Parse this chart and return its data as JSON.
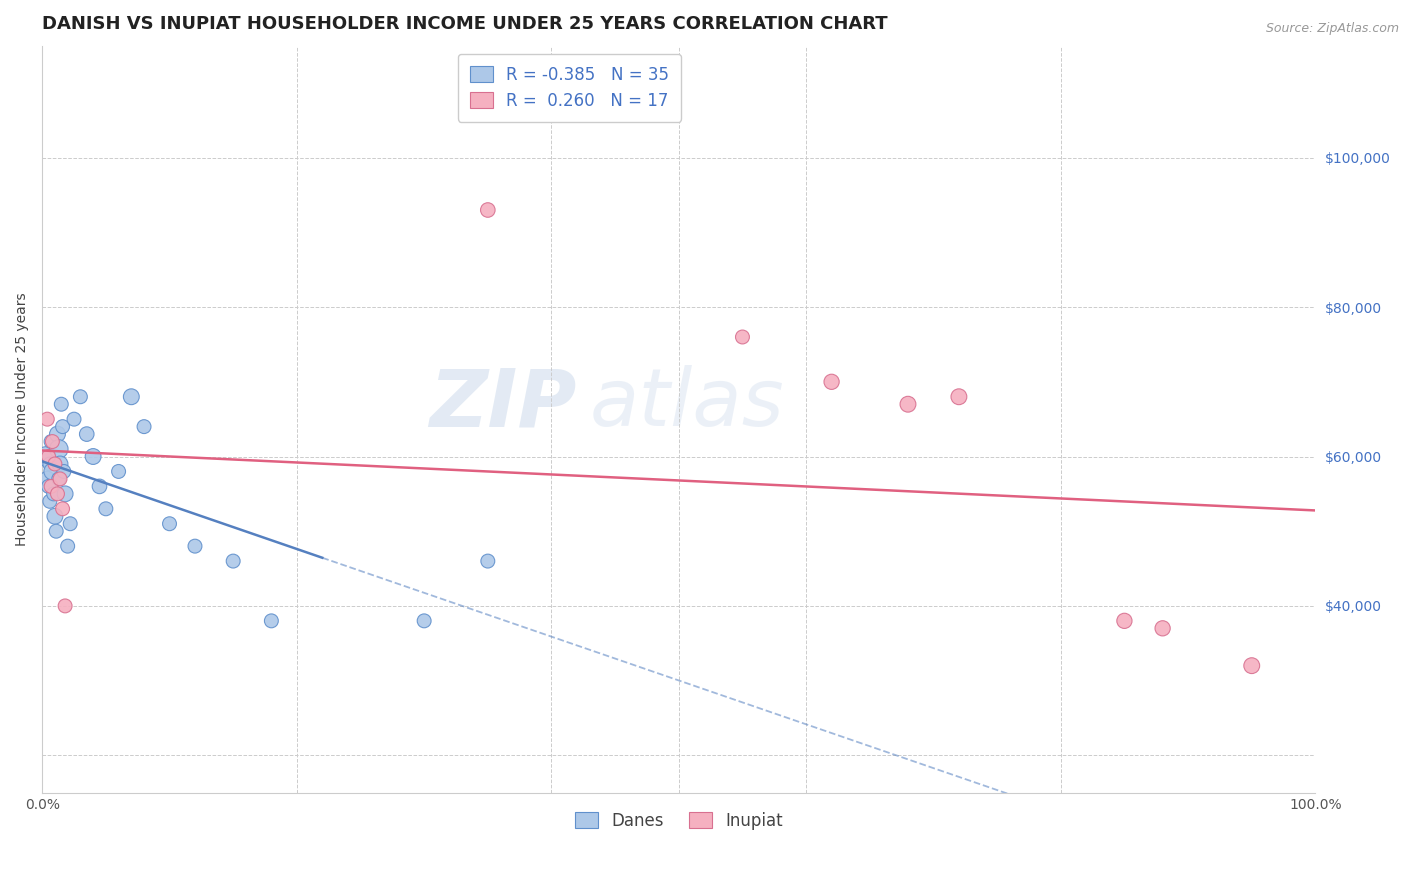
{
  "title": "DANISH VS INUPIAT HOUSEHOLDER INCOME UNDER 25 YEARS CORRELATION CHART",
  "source": "Source: ZipAtlas.com",
  "ylabel": "Householder Income Under 25 years",
  "xlim": [
    0.0,
    1.0
  ],
  "ylim": [
    15000,
    115000
  ],
  "r_danes": -0.385,
  "n_danes": 35,
  "r_inupiat": 0.26,
  "n_inupiat": 17,
  "danes_color": "#adc8e8",
  "danes_line_color": "#5580c0",
  "danes_edge_color": "#6090cc",
  "inupiat_color": "#f5b0c0",
  "inupiat_line_color": "#e06080",
  "inupiat_edge_color": "#d87090",
  "background_color": "#ffffff",
  "watermark_zip": "ZIP",
  "watermark_atlas": "atlas",
  "danes_x": [
    0.003,
    0.004,
    0.005,
    0.006,
    0.006,
    0.007,
    0.008,
    0.009,
    0.01,
    0.011,
    0.012,
    0.013,
    0.013,
    0.014,
    0.015,
    0.016,
    0.017,
    0.018,
    0.02,
    0.022,
    0.025,
    0.03,
    0.035,
    0.04,
    0.045,
    0.05,
    0.06,
    0.07,
    0.08,
    0.1,
    0.12,
    0.15,
    0.18,
    0.3,
    0.35
  ],
  "danes_y": [
    60000,
    57000,
    56000,
    59000,
    54000,
    62000,
    58000,
    55000,
    52000,
    50000,
    63000,
    61000,
    57000,
    59000,
    67000,
    64000,
    58000,
    55000,
    48000,
    51000,
    65000,
    68000,
    63000,
    60000,
    56000,
    53000,
    58000,
    68000,
    64000,
    51000,
    48000,
    46000,
    38000,
    38000,
    46000
  ],
  "danes_sizes": [
    200,
    120,
    100,
    100,
    100,
    100,
    150,
    100,
    130,
    100,
    130,
    180,
    100,
    130,
    100,
    100,
    100,
    130,
    100,
    100,
    100,
    100,
    110,
    130,
    110,
    100,
    100,
    130,
    100,
    100,
    100,
    100,
    100,
    100,
    100
  ],
  "inupiat_x": [
    0.004,
    0.005,
    0.007,
    0.008,
    0.01,
    0.012,
    0.014,
    0.016,
    0.018,
    0.35,
    0.55,
    0.62,
    0.68,
    0.72,
    0.85,
    0.88,
    0.95
  ],
  "inupiat_y": [
    65000,
    60000,
    56000,
    62000,
    59000,
    55000,
    57000,
    53000,
    40000,
    93000,
    76000,
    70000,
    67000,
    68000,
    38000,
    37000,
    32000
  ],
  "inupiat_sizes": [
    100,
    100,
    100,
    100,
    100,
    100,
    100,
    100,
    100,
    110,
    100,
    120,
    130,
    130,
    120,
    120,
    130
  ],
  "title_fontsize": 13,
  "label_fontsize": 10,
  "tick_fontsize": 10,
  "legend_fontsize": 12,
  "source_fontsize": 9
}
